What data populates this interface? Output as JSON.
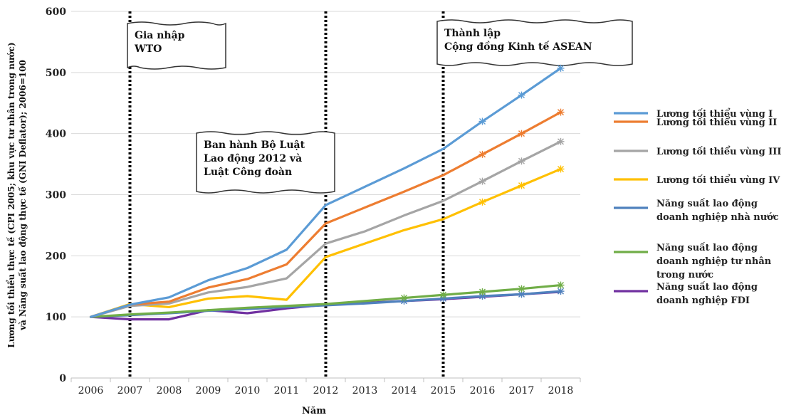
{
  "chart_data": {
    "type": "line",
    "xlabel": "Năm",
    "ylabel_lines": [
      "Lương tối thiểu thực tế (CPI 2005; khu vực tư nhân trong nước)",
      "và Năng suất lao động thực tế (GNI Deflator); 2006=100"
    ],
    "categories": [
      "2006",
      "2007",
      "2008",
      "2009",
      "2010",
      "2011",
      "2012",
      "2013",
      "2014",
      "2015",
      "2016",
      "2017",
      "2018"
    ],
    "ylim": [
      0,
      600
    ],
    "yticks": [
      0,
      100,
      200,
      300,
      400,
      500,
      600
    ],
    "grid": true,
    "legend_position": "right",
    "series": [
      {
        "name": "Lương tối thiểu vùng I",
        "color": "#5b9bd5",
        "values": [
          100,
          120,
          132,
          160,
          180,
          210,
          283,
          313,
          343,
          375,
          420,
          463,
          507
        ],
        "markers": [
          10,
          11,
          12
        ]
      },
      {
        "name": "Lương tối thiểu vùng II",
        "color": "#ed7d31",
        "values": [
          100,
          120,
          125,
          148,
          162,
          186,
          253,
          279,
          305,
          332,
          366,
          400,
          435
        ],
        "markers": [
          10,
          11,
          12
        ]
      },
      {
        "name": "Lương tối thiểu vùng III",
        "color": "#a5a5a5",
        "values": [
          100,
          118,
          122,
          140,
          149,
          163,
          220,
          240,
          266,
          290,
          322,
          355,
          387
        ],
        "markers": [
          10,
          11,
          12
        ]
      },
      {
        "name": "Lương tối thiểu vùng  IV",
        "color": "#ffc000",
        "values": [
          100,
          121,
          116,
          130,
          134,
          128,
          198,
          220,
          242,
          260,
          288,
          315,
          342
        ],
        "markers": [
          10,
          11,
          12
        ]
      },
      {
        "name": "Năng suất lao động doanh nghiệp nhà nước",
        "color": "#4f81bd",
        "values": [
          100,
          103,
          106,
          110,
          113,
          116,
          119,
          122,
          126,
          130,
          134,
          137,
          142
        ],
        "markers": [
          8,
          9,
          10,
          11,
          12
        ]
      },
      {
        "name": "Năng suất lao động doanh nghiệp tư nhân trong nước",
        "color": "#70ad47",
        "values": [
          100,
          104,
          107,
          111,
          115,
          118,
          121,
          126,
          131,
          136,
          141,
          146,
          152
        ],
        "markers": [
          8,
          9,
          10,
          11,
          12
        ]
      },
      {
        "name": "Năng suất lao động doanh nghiệp FDI",
        "color": "#7030a0",
        "values": [
          100,
          96,
          96,
          111,
          106,
          114,
          120,
          123,
          126,
          129,
          133,
          137,
          141
        ],
        "markers": []
      }
    ],
    "legend_labels": [
      [
        "Lương tối thiểu vùng I"
      ],
      [
        "Lương tối thiểu vùng II"
      ],
      [
        "Lương tối thiểu vùng III"
      ],
      [
        "Lương tối thiểu vùng  IV"
      ],
      [
        "Năng suất lao động",
        "doanh nghiệp nhà nước"
      ],
      [
        "Năng suất lao động",
        "doanh nghiệp tư nhân",
        "trong nước"
      ],
      [
        "Năng suất lao động",
        "doanh nghiệp FDI"
      ]
    ],
    "event_lines": [
      {
        "at": "2007",
        "label_lines": [
          "Gia nhập",
          "WTO"
        ]
      },
      {
        "at": "2012",
        "label_lines": [
          "Ban hành Bộ Luật",
          "Lao động 2012 và",
          "Luật Công đoàn"
        ]
      },
      {
        "at": "2015",
        "label_lines": [
          "Thành lập",
          "Cộng đồng Kinh tế ASEAN"
        ]
      }
    ]
  }
}
